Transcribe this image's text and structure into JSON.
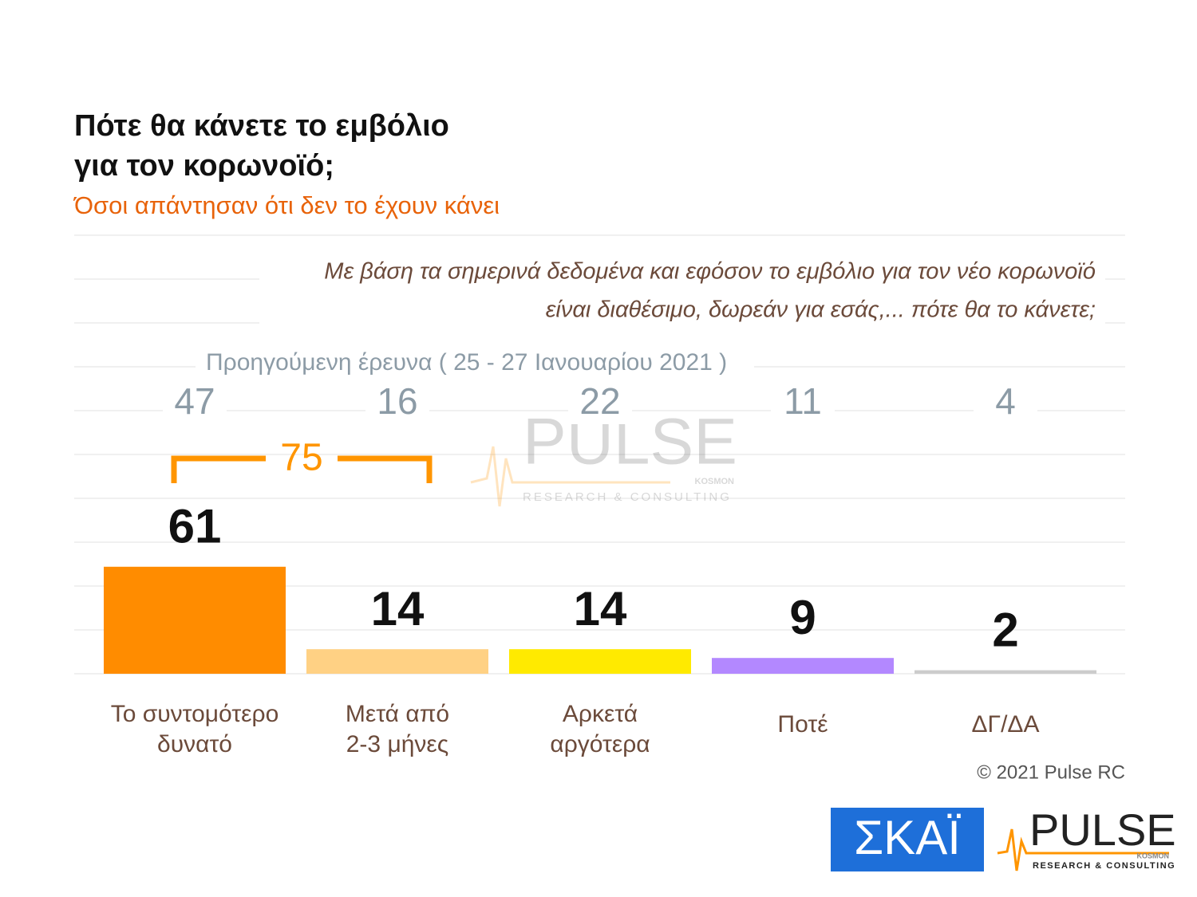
{
  "chart_data": {
    "type": "bar",
    "title": [
      "Πότε θα κάνετε το εμβόλιο",
      "για τον κορωνοϊό;"
    ],
    "subtitle": "Όσοι απάντησαν ότι δεν το έχουν κάνει",
    "question": [
      "Με βάση τα σημερινά δεδομένα και εφόσον το εμβόλιο για τον νέο κορωνοϊό",
      "είναι διαθέσιμο, δωρεάν για εσάς,... πότε θα το κάνετε;"
    ],
    "categories": [
      [
        "Το συντομότερο",
        "δυνατό"
      ],
      [
        "Μετά από",
        "2-3 μήνες"
      ],
      [
        "Αρκετά",
        "αργότερα"
      ],
      [
        "Ποτέ"
      ],
      [
        "ΔΓ/ΔΑ"
      ]
    ],
    "series": [
      {
        "name": "Προηγούμενη έρευνα ( 25 - 27 Ιανουαρίου 2021 )",
        "color": "#8c9ba6",
        "values": [
          47,
          16,
          22,
          11,
          4
        ]
      },
      {
        "colors": [
          "#ff8c00",
          "#ffd184",
          "#ffea00",
          "#b388ff",
          "#cccccc"
        ],
        "values": [
          61,
          14,
          14,
          9,
          2
        ]
      }
    ],
    "annotation": {
      "label": "75",
      "color": "#ff9500",
      "from": 0,
      "to": 1
    },
    "copyright": "© 2021 Pulse RC",
    "watermark": {
      "name": "PULSE",
      "sub": "RESEARCH & CONSULTING",
      "tag": "KOSMON"
    },
    "logos": {
      "skai": "ΣΚΑΪ",
      "pulse": "PULSE",
      "pulse_sub": "RESEARCH & CONSULTING",
      "pulse_tag": "KOSMON"
    }
  }
}
